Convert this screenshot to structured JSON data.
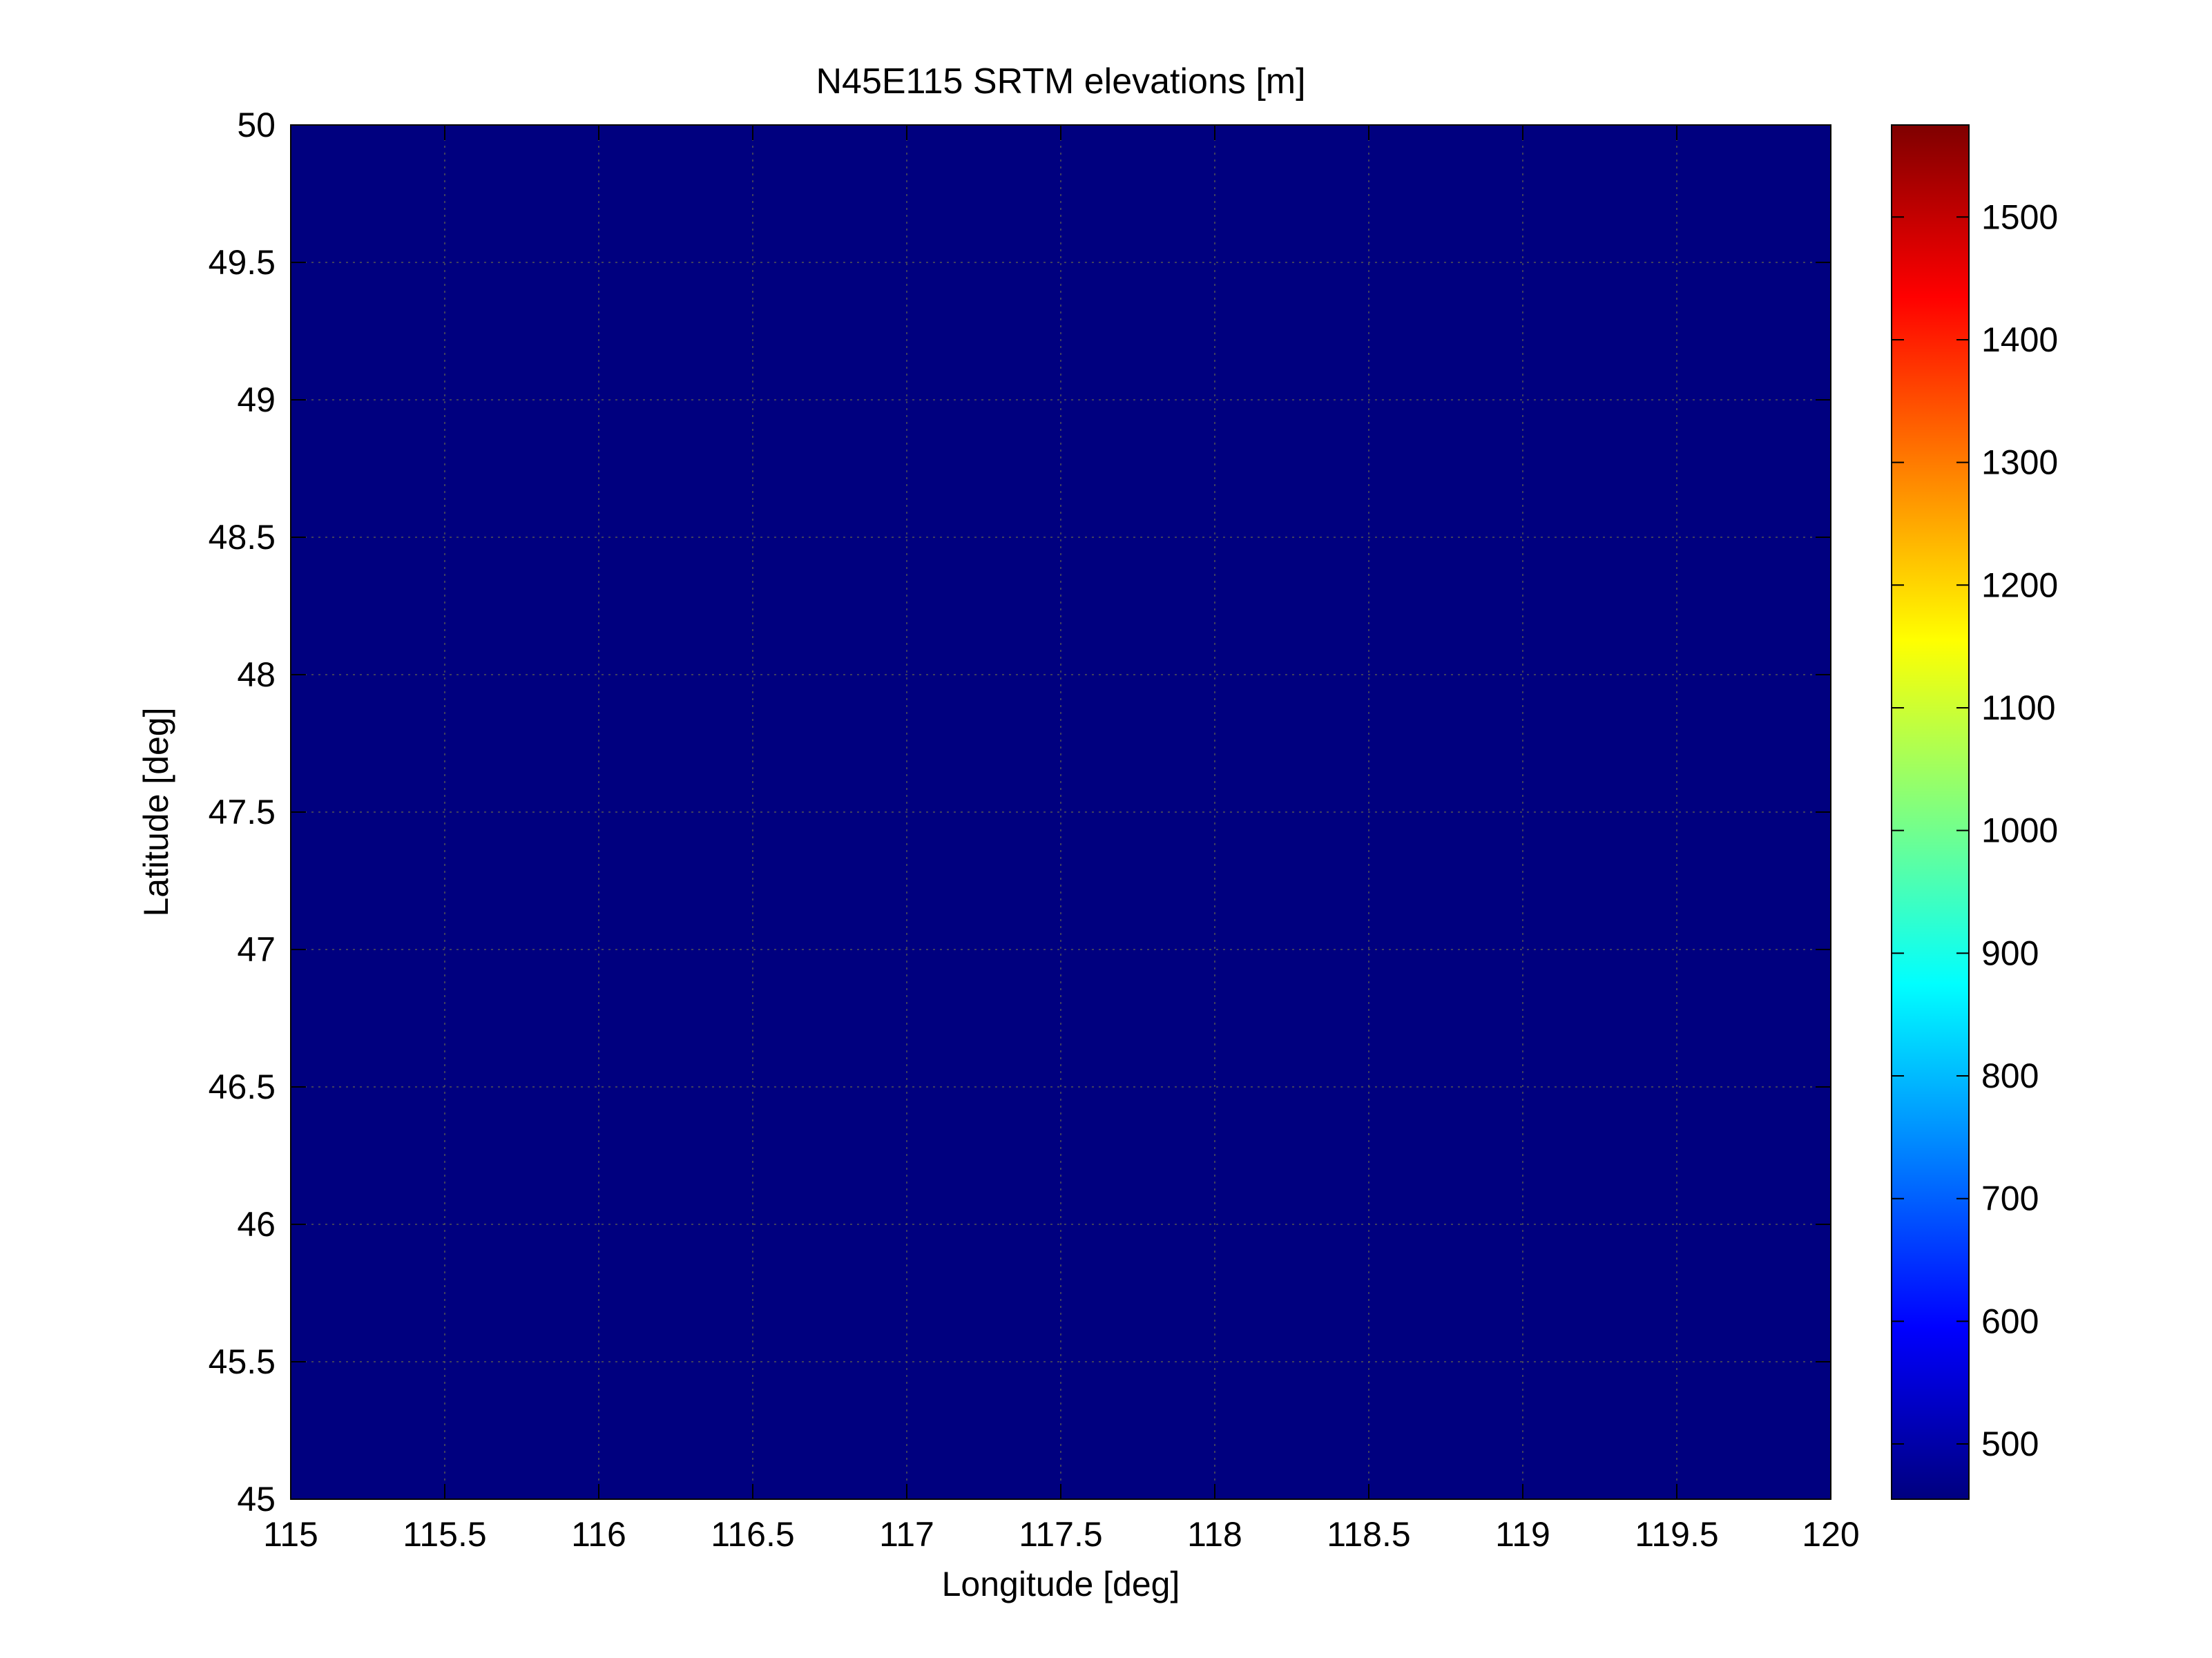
{
  "chart_data": {
    "type": "heatmap",
    "title": "N45E115 SRTM elevations [m]",
    "xlabel": "Longitude [deg]",
    "ylabel": "Latitude [deg]",
    "xlim": [
      115,
      120
    ],
    "ylim": [
      45,
      50
    ],
    "x_ticks": [
      "115",
      "115.5",
      "116",
      "116.5",
      "117",
      "117.5",
      "118",
      "118.5",
      "119",
      "119.5",
      "120"
    ],
    "y_ticks": [
      "45",
      "45.5",
      "46",
      "46.5",
      "47",
      "47.5",
      "48",
      "48.5",
      "49",
      "49.5",
      "50"
    ],
    "grid": true,
    "colormap": "jet",
    "colorbar": {
      "range": [
        455,
        1575
      ],
      "ticks": [
        "500",
        "600",
        "700",
        "800",
        "900",
        "1000",
        "1100",
        "1200",
        "1300",
        "1400",
        "1500"
      ]
    }
  }
}
